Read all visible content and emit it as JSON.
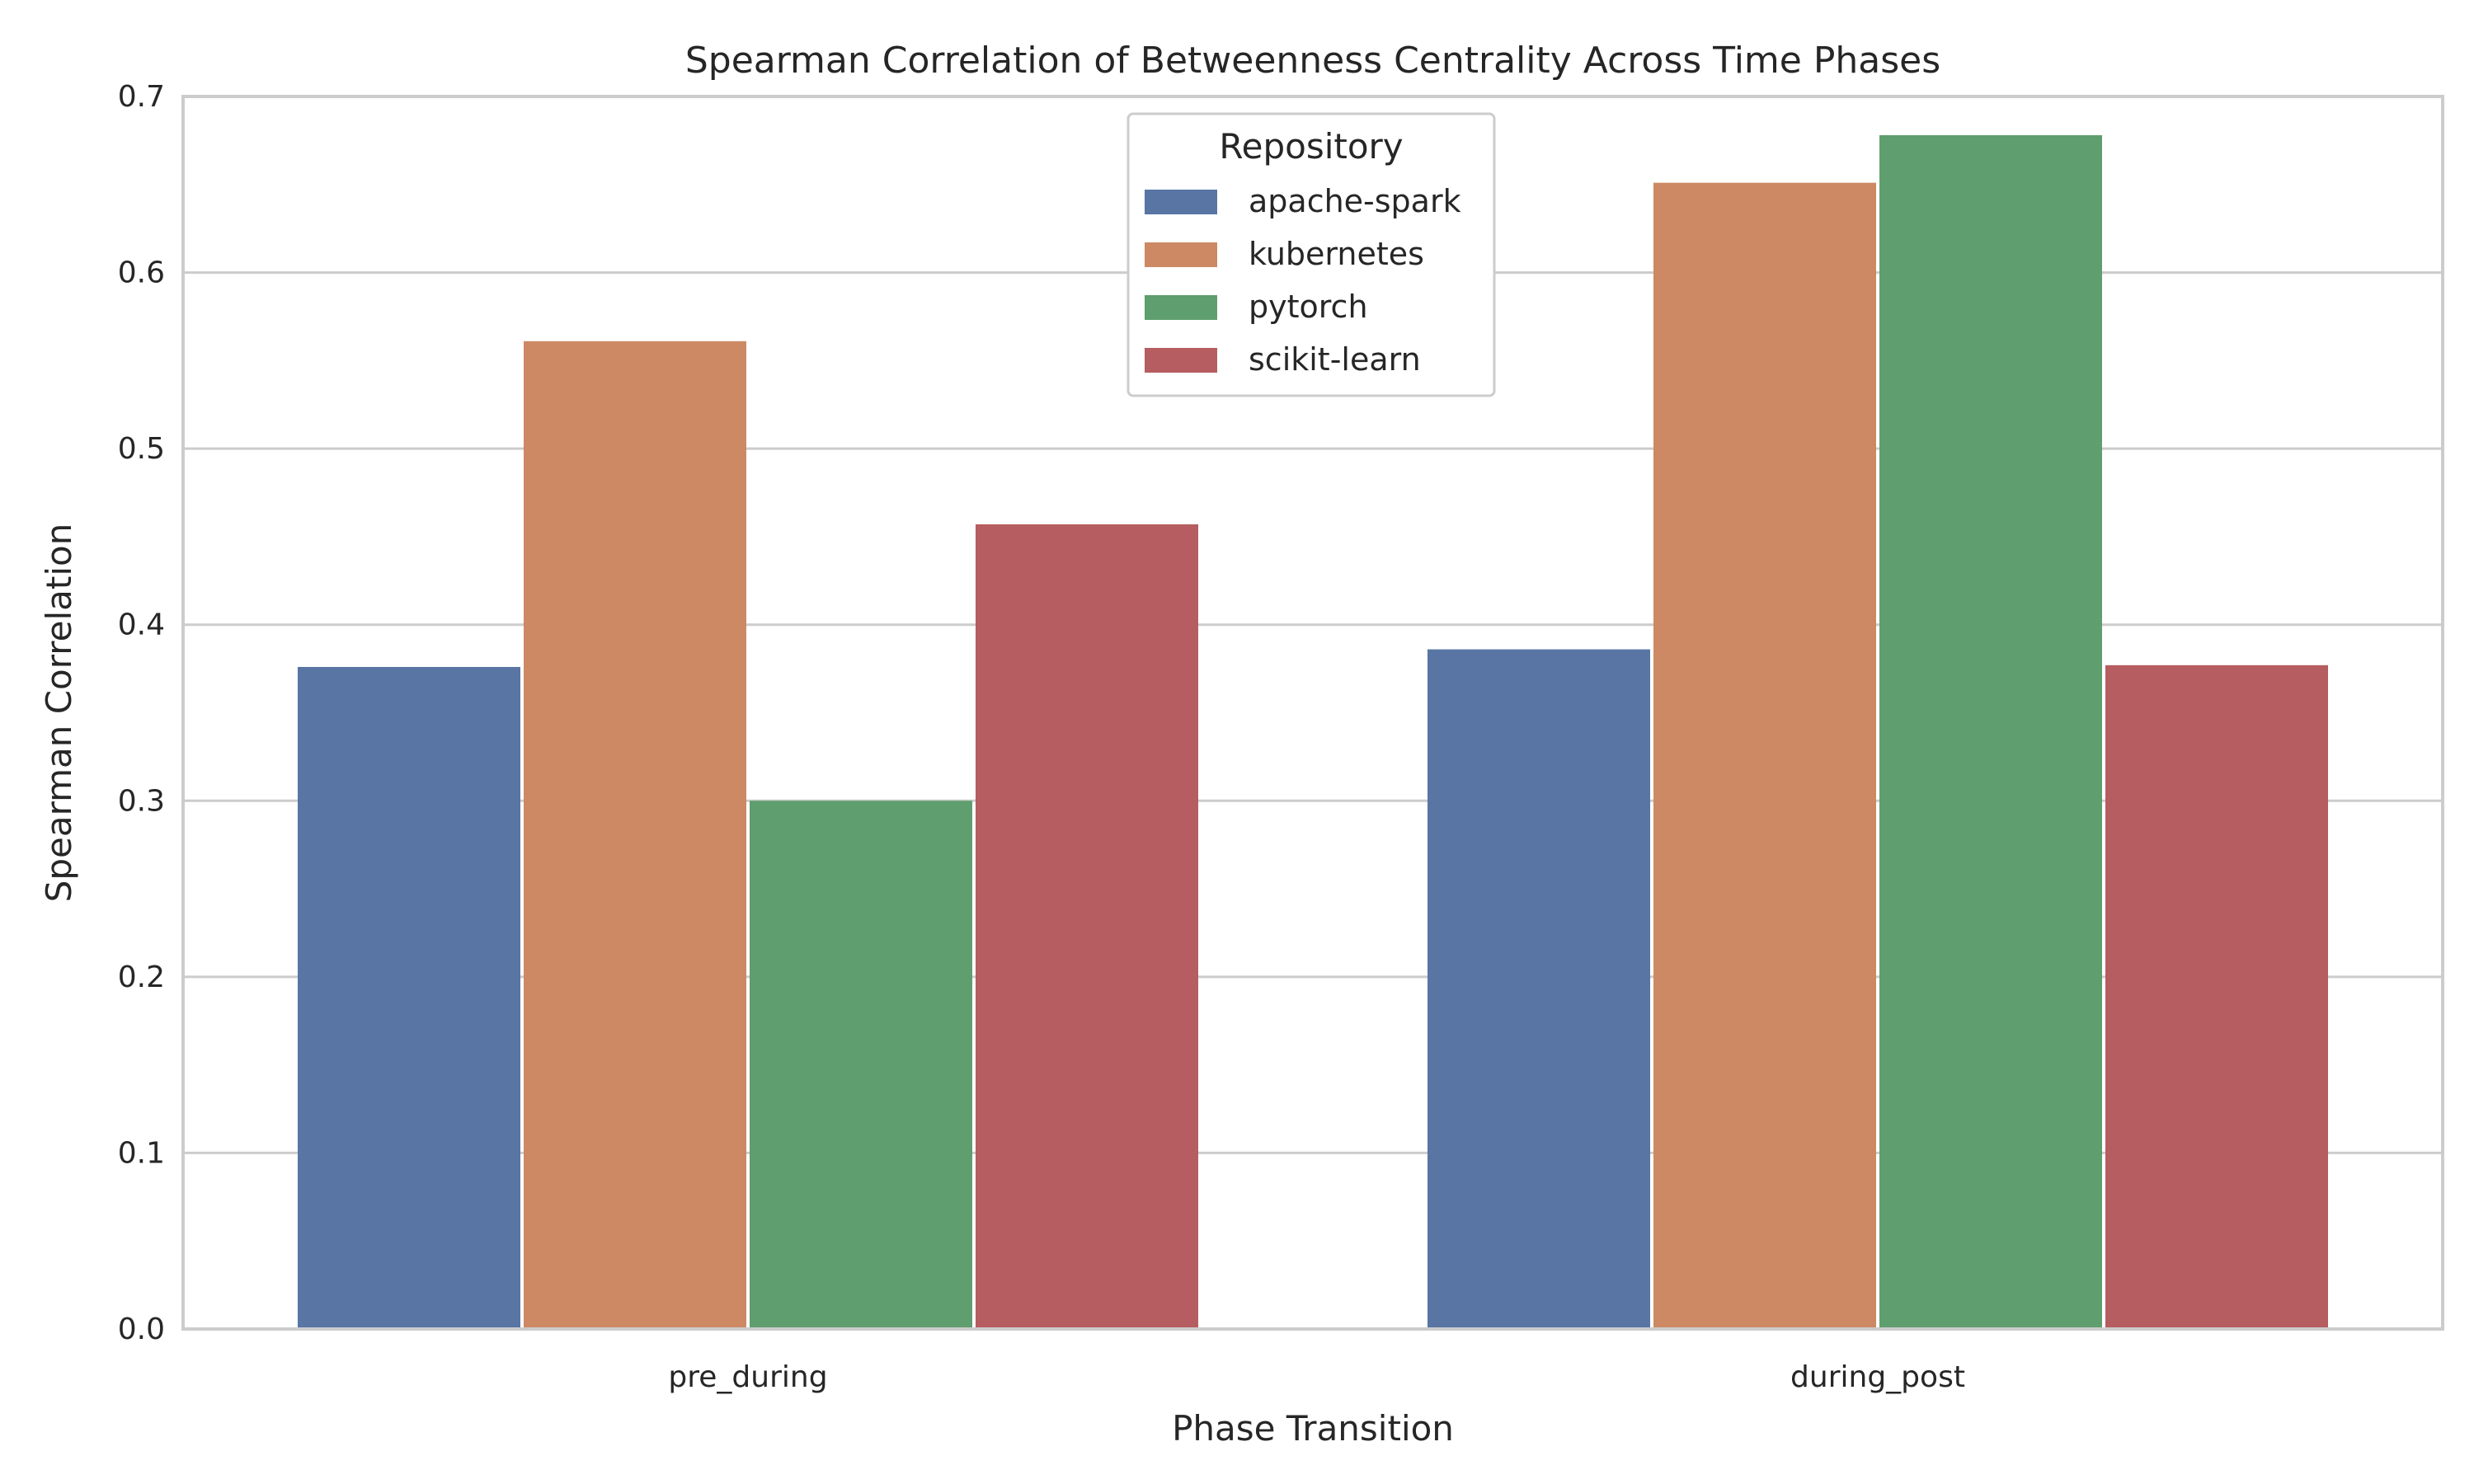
{
  "chart_data": {
    "type": "bar",
    "title": "Spearman Correlation of Betweenness Centrality Across Time Phases",
    "xlabel": "Phase Transition",
    "ylabel": "Spearman Correlation",
    "categories": [
      "pre_during",
      "during_post"
    ],
    "series": [
      {
        "name": "apache-spark",
        "color": "#5875a4",
        "values": [
          0.376,
          0.386
        ]
      },
      {
        "name": "kubernetes",
        "color": "#cc8963",
        "values": [
          0.561,
          0.651
        ]
      },
      {
        "name": "pytorch",
        "color": "#5f9e6e",
        "values": [
          0.3,
          0.678
        ]
      },
      {
        "name": "scikit-learn",
        "color": "#b55d60",
        "values": [
          0.457,
          0.377
        ]
      }
    ],
    "ylim": [
      0,
      0.7
    ],
    "yticks": [
      "0.0",
      "0.1",
      "0.2",
      "0.3",
      "0.4",
      "0.5",
      "0.6",
      "0.7"
    ],
    "grid": true,
    "legend": {
      "title": "Repository",
      "placement": "top-center"
    }
  }
}
